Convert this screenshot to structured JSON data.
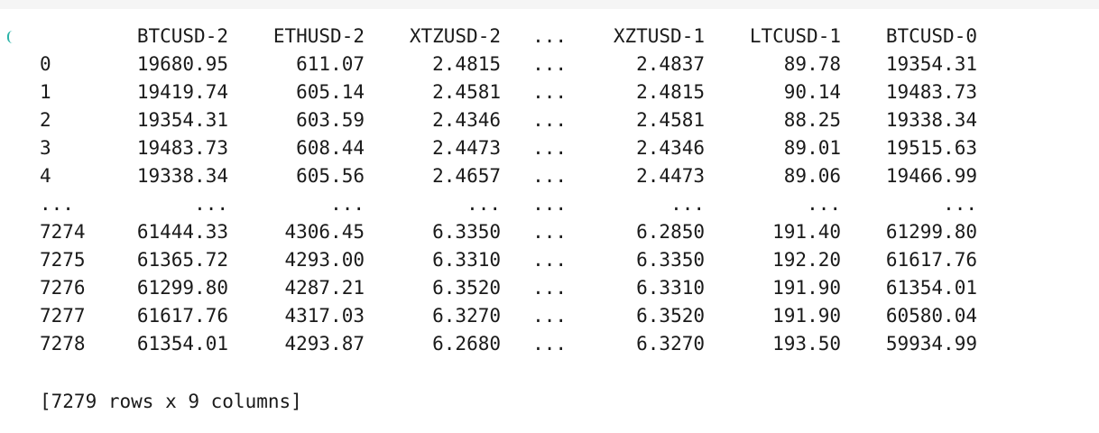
{
  "table": {
    "columns": [
      "BTCUSD-2",
      "ETHUSD-2",
      "XTZUSD-2",
      "...",
      "XZTUSD-1",
      "LTCUSD-1",
      "BTCUSD-0"
    ],
    "rows": [
      {
        "index": "0",
        "cells": [
          "19680.95",
          "611.07",
          "2.4815",
          "...",
          "2.4837",
          "89.78",
          "19354.31"
        ]
      },
      {
        "index": "1",
        "cells": [
          "19419.74",
          "605.14",
          "2.4581",
          "...",
          "2.4815",
          "90.14",
          "19483.73"
        ]
      },
      {
        "index": "2",
        "cells": [
          "19354.31",
          "603.59",
          "2.4346",
          "...",
          "2.4581",
          "88.25",
          "19338.34"
        ]
      },
      {
        "index": "3",
        "cells": [
          "19483.73",
          "608.44",
          "2.4473",
          "...",
          "2.4346",
          "89.01",
          "19515.63"
        ]
      },
      {
        "index": "4",
        "cells": [
          "19338.34",
          "605.56",
          "2.4657",
          "...",
          "2.4473",
          "89.06",
          "19466.99"
        ]
      },
      {
        "index": "...",
        "cells": [
          "...",
          "...",
          "...",
          "...",
          "...",
          "...",
          "..."
        ]
      },
      {
        "index": "7274",
        "cells": [
          "61444.33",
          "4306.45",
          "6.3350",
          "...",
          "6.2850",
          "191.40",
          "61299.80"
        ]
      },
      {
        "index": "7275",
        "cells": [
          "61365.72",
          "4293.00",
          "6.3310",
          "...",
          "6.3350",
          "192.20",
          "61617.76"
        ]
      },
      {
        "index": "7276",
        "cells": [
          "61299.80",
          "4287.21",
          "6.3520",
          "...",
          "6.3310",
          "191.90",
          "61354.01"
        ]
      },
      {
        "index": "7277",
        "cells": [
          "61617.76",
          "4317.03",
          "6.3270",
          "...",
          "6.3520",
          "191.90",
          "60580.04"
        ]
      },
      {
        "index": "7278",
        "cells": [
          "61354.01",
          "4293.87",
          "6.2680",
          "...",
          "6.3270",
          "193.50",
          "59934.99"
        ]
      }
    ],
    "summary": "[7279 rows x 9 columns]"
  }
}
